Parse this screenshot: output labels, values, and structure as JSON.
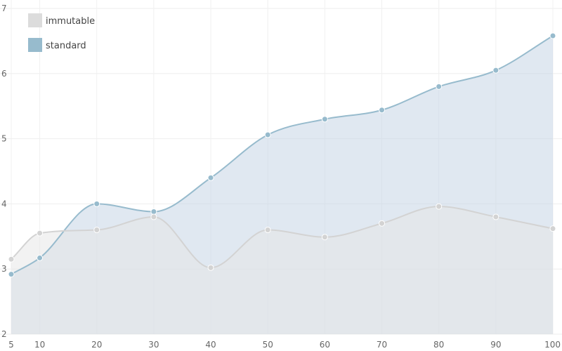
{
  "chart_data": {
    "type": "area",
    "x": [
      5,
      10,
      20,
      30,
      40,
      50,
      60,
      70,
      80,
      90,
      100
    ],
    "xlim": [
      5,
      100
    ],
    "ylim": [
      2,
      7
    ],
    "yticks": [
      2,
      3,
      4,
      5,
      6,
      7
    ],
    "grid": true,
    "legend_position": "top-left",
    "series": [
      {
        "name": "immutable",
        "values": [
          3.15,
          3.55,
          3.6,
          3.8,
          3.02,
          3.6,
          3.49,
          3.7,
          3.96,
          3.8,
          3.62
        ],
        "color": "#dcdcdc",
        "line_color": "#d3d3d3",
        "fill_color": "#e6e6e6"
      },
      {
        "name": "standard",
        "values": [
          2.92,
          3.17,
          4.0,
          3.88,
          4.4,
          5.06,
          5.3,
          5.44,
          5.8,
          6.05,
          6.58
        ],
        "color": "#97bbcd",
        "line_color": "#97bbcd",
        "fill_color": "#c6d6e5"
      }
    ]
  }
}
